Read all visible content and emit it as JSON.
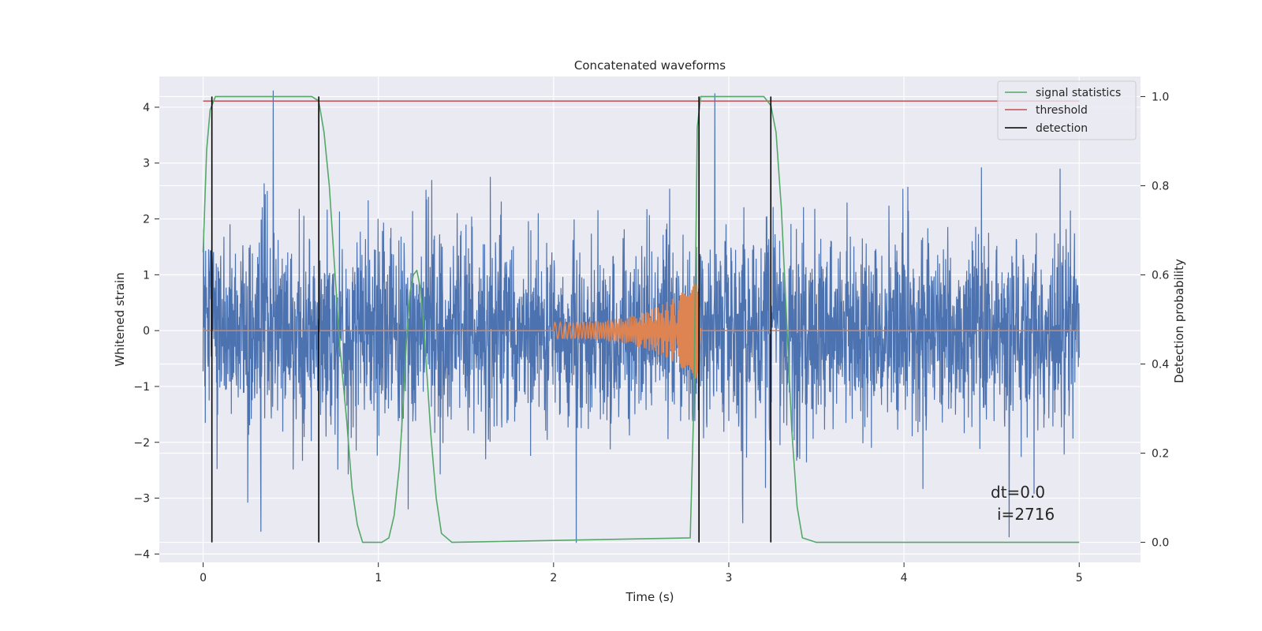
{
  "chart_data": {
    "type": "line",
    "title": "Concatenated waveforms",
    "xlabel": "Time (s)",
    "ylabel": "Whitened strain",
    "y2label": "Detection probability",
    "xlim": [
      -0.25,
      5.35
    ],
    "ylim": [
      -4.15,
      4.55
    ],
    "y2lim": [
      -0.045,
      1.045
    ],
    "xticks": [
      0,
      1,
      2,
      3,
      4,
      5
    ],
    "yticks": [
      -4,
      -3,
      -2,
      -1,
      0,
      1,
      2,
      3,
      4
    ],
    "y2ticks": [
      0.0,
      0.2,
      0.4,
      0.6,
      0.8,
      1.0
    ],
    "ytick_labels": [
      "−4",
      "−3",
      "−2",
      "−1",
      "0",
      "1",
      "2",
      "3",
      "4"
    ],
    "y2tick_labels": [
      "0.0",
      "0.2",
      "0.4",
      "0.6",
      "0.8",
      "1.0"
    ],
    "grid": true,
    "legend_position": "top-right",
    "colors": {
      "strain": "#4c72b0",
      "waveform": "#dd8452",
      "signal_statistics": "#55a868",
      "threshold": "#c44e52",
      "detection": "#000000",
      "background": "#eaeaf2",
      "grid": "#ffffff"
    },
    "series": [
      {
        "name": "signal statistics",
        "axis": "right",
        "x": [
          0.0,
          0.02,
          0.04,
          0.07,
          0.1,
          0.62,
          0.66,
          0.69,
          0.72,
          0.75,
          0.78,
          0.82,
          0.85,
          0.88,
          0.91,
          1.02,
          1.06,
          1.09,
          1.12,
          1.14,
          1.16,
          1.18,
          1.2,
          1.22,
          1.24,
          1.26,
          1.28,
          1.3,
          1.33,
          1.36,
          1.42,
          2.78,
          2.8,
          2.81,
          2.82,
          2.84,
          2.9,
          3.2,
          3.24,
          3.27,
          3.3,
          3.33,
          3.36,
          3.39,
          3.42,
          3.5,
          5.0
        ],
        "y": [
          0.65,
          0.88,
          0.97,
          1.0,
          1.0,
          1.0,
          0.99,
          0.92,
          0.8,
          0.62,
          0.44,
          0.27,
          0.12,
          0.04,
          0.0,
          0.0,
          0.01,
          0.06,
          0.17,
          0.3,
          0.45,
          0.56,
          0.6,
          0.61,
          0.57,
          0.48,
          0.36,
          0.24,
          0.1,
          0.02,
          0.0,
          0.01,
          0.3,
          0.6,
          0.93,
          1.0,
          1.0,
          1.0,
          0.98,
          0.92,
          0.75,
          0.5,
          0.25,
          0.08,
          0.01,
          0.0,
          0.0
        ]
      },
      {
        "name": "threshold",
        "axis": "right",
        "x": [
          0.0,
          5.0
        ],
        "y": [
          0.99,
          0.99
        ]
      },
      {
        "name": "detection",
        "axis": "right",
        "x_positions": [
          0.05,
          0.66,
          2.83,
          3.24
        ],
        "y_range": [
          0.0,
          1.0
        ]
      },
      {
        "name": "",
        "axis": "left",
        "description_type": "noise",
        "x_range": [
          0.0,
          5.0
        ],
        "typical_amplitude": 0.85,
        "x_peaks": [
          0.4,
          2.92,
          2.13,
          3.08,
          4.6,
          0.33,
          1.17
        ],
        "y_peaks": [
          4.3,
          4.25,
          -3.8,
          -3.45,
          -3.7,
          -3.6,
          -3.2
        ]
      },
      {
        "name": "",
        "axis": "left",
        "description_type": "chirp",
        "x_range": [
          2.0,
          2.84
        ],
        "amplitude_start": 0.15,
        "amplitude_end": 0.95,
        "frequency_start": 30,
        "frequency_end": 150
      }
    ],
    "legend": [
      "signal statistics",
      "threshold",
      "detection"
    ],
    "annotations": [
      "dt=0.0",
      "i=2716"
    ]
  }
}
